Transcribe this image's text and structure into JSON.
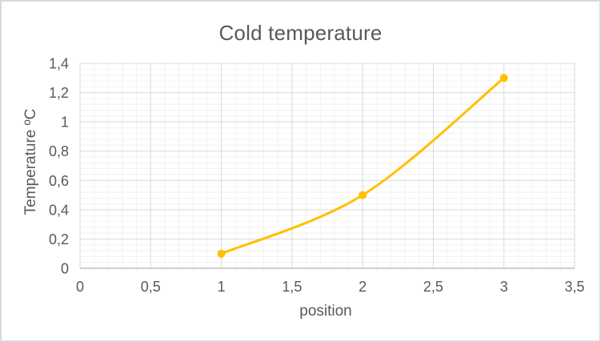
{
  "chart_data": {
    "type": "line",
    "title": "Cold temperature",
    "xlabel": "position",
    "ylabel": "Temperature ºC",
    "x": [
      1,
      2,
      3
    ],
    "y": [
      0.1,
      0.5,
      1.3
    ],
    "xlim": [
      0,
      3.5
    ],
    "ylim": [
      0,
      1.4
    ],
    "x_ticks": {
      "values": [
        0,
        0.5,
        1,
        1.5,
        2,
        2.5,
        3,
        3.5
      ],
      "labels": [
        "0",
        "0,5",
        "1",
        "1,5",
        "2",
        "2,5",
        "3",
        "3,5"
      ]
    },
    "y_ticks": {
      "values": [
        0,
        0.2,
        0.4,
        0.6,
        0.8,
        1,
        1.2,
        1.4
      ],
      "labels": [
        "0",
        "0,2",
        "0,4",
        "0,6",
        "0,8",
        "1",
        "1,2",
        "1,4"
      ]
    },
    "x_minor_unit": 0.1,
    "y_minor_unit": 0.04,
    "grid": "major+minor",
    "legend": "none",
    "smooth": true,
    "marker": "circle"
  },
  "style": {
    "series_color": "#FFC000",
    "text_color": "#595959",
    "major_grid_color": "#D9D9D9",
    "minor_grid_color": "#F2F2F2",
    "axis_line_color": "#BFBFBF",
    "frame_border_color": "#D9D9D9",
    "background_color": "#FFFFFF"
  }
}
